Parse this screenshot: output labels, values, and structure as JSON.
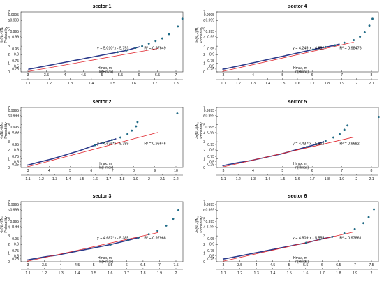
{
  "chart_data": [
    {
      "type": "scatter",
      "title": "sector 1",
      "xlabel": "Hmax, m",
      "xlabel2": "ln(Hmax)",
      "ylabel_left": "-ln(N₀-i)/N₀",
      "ylabel_right": "Probability",
      "x_ticks": [
        "3",
        "3.5",
        "4",
        "4.5",
        "5",
        "5.5",
        "6",
        "6.5",
        "7"
      ],
      "x2_ticks": [
        "1.1",
        "1.2",
        "1.3",
        "1.4",
        "1.5",
        "1.6",
        "1.7",
        "1.8"
      ],
      "y_ticks": [
        "0",
        "1",
        "2",
        "3",
        "4",
        "5",
        "6",
        "7"
      ],
      "prob_ticks": [
        "0.25",
        "0.5",
        "0.75",
        "0.9",
        "0.95",
        "0.99",
        "0.995",
        "0.999",
        "0.9995"
      ],
      "equation": "y = 5.010*x - 5.793",
      "r2": "R² = 0.97649",
      "fit": {
        "slope": 5.01,
        "intercept": -5.793
      },
      "ln_range": [
        1.1,
        1.8
      ],
      "points": [
        [
          1.12,
          0.3
        ],
        [
          1.16,
          0.5
        ],
        [
          1.22,
          0.8
        ],
        [
          1.28,
          1.1
        ],
        [
          1.34,
          1.4
        ],
        [
          1.4,
          1.7
        ],
        [
          1.46,
          2.0
        ],
        [
          1.52,
          2.3
        ],
        [
          1.56,
          2.5
        ],
        [
          1.6,
          2.8
        ],
        [
          1.63,
          3.0
        ],
        [
          1.66,
          3.3
        ],
        [
          1.69,
          3.6
        ],
        [
          1.72,
          3.9
        ],
        [
          1.75,
          4.4
        ],
        [
          1.79,
          5.3
        ],
        [
          1.81,
          6.2
        ]
      ]
    },
    {
      "type": "scatter",
      "title": "sector 4",
      "xlabel": "Hmax, m",
      "xlabel2": "ln(Hmax)",
      "ylabel_left": "-ln(N₀-i)/N₀",
      "ylabel_right": "Probability",
      "x_ticks": [
        "3",
        "4",
        "5",
        "6",
        "7",
        "8"
      ],
      "x2_ticks": [
        "1.1",
        "1.2",
        "1.3",
        "1.4",
        "1.5",
        "1.6",
        "1.7",
        "1.8",
        "1.9",
        "2",
        "2.1"
      ],
      "y_ticks": [
        "0",
        "1",
        "2",
        "3",
        "4",
        "5",
        "6",
        "7"
      ],
      "prob_ticks": [
        "0.25",
        "0.5",
        "0.75",
        "0.9",
        "0.95",
        "0.99",
        "0.995",
        "0.999",
        "0.9995"
      ],
      "equation": "y = 4.245*x - 4.852",
      "r2": "R² = 0.98476",
      "fit": {
        "slope": 4.245,
        "intercept": -4.852
      },
      "ln_range": [
        1.1,
        2.1
      ],
      "points": [
        [
          1.12,
          0.3
        ],
        [
          1.2,
          0.6
        ],
        [
          1.3,
          1.0
        ],
        [
          1.4,
          1.4
        ],
        [
          1.5,
          1.8
        ],
        [
          1.6,
          2.2
        ],
        [
          1.7,
          2.6
        ],
        [
          1.78,
          2.9
        ],
        [
          1.84,
          3.1
        ],
        [
          1.9,
          3.4
        ],
        [
          1.96,
          3.7
        ],
        [
          2.0,
          4.1
        ],
        [
          2.03,
          4.6
        ],
        [
          2.06,
          5.4
        ],
        [
          2.08,
          6.2
        ]
      ]
    },
    {
      "type": "scatter",
      "title": "sector 2",
      "xlabel": "Hmax, m",
      "xlabel2": "ln(Hmax)",
      "ylabel_left": "-ln(N₀-i)/N₀",
      "ylabel_right": "Probability",
      "x_ticks": [
        "3",
        "4",
        "5",
        "6",
        "7",
        "8",
        "9",
        "10"
      ],
      "x2_ticks": [
        "1.1",
        "1.2",
        "1.3",
        "1.4",
        "1.5",
        "1.6",
        "1.7",
        "1.8",
        "1.9",
        "2",
        "2.1",
        "2.2"
      ],
      "y_ticks": [
        "0",
        "1",
        "2",
        "3",
        "4",
        "5",
        "6",
        "7"
      ],
      "prob_ticks": [
        "0.25",
        "0.5",
        "0.75",
        "0.9",
        "0.95",
        "0.99",
        "0.995",
        "0.999",
        "0.9995"
      ],
      "equation": "y = 4.636*x - 5.389",
      "r2": "R² = 0.96646",
      "fit": {
        "slope": 4.636,
        "intercept": -5.389
      },
      "ln_range": [
        1.1,
        2.2
      ],
      "points": [
        [
          1.12,
          0.25
        ],
        [
          1.2,
          0.6
        ],
        [
          1.3,
          1.0
        ],
        [
          1.4,
          1.5
        ],
        [
          1.5,
          2.0
        ],
        [
          1.55,
          2.3
        ],
        [
          1.6,
          2.6
        ],
        [
          1.66,
          2.9
        ],
        [
          1.72,
          3.2
        ],
        [
          1.78,
          3.5
        ],
        [
          1.83,
          3.9
        ],
        [
          1.86,
          4.3
        ],
        [
          1.89,
          4.8
        ],
        [
          1.9,
          5.3
        ],
        [
          2.18,
          6.3
        ]
      ]
    },
    {
      "type": "scatter",
      "title": "sector 5",
      "xlabel": "Hmax, m",
      "xlabel2": "ln(Hmax)",
      "ylabel_left": "-ln(N₀-i)/N₀",
      "ylabel_right": "Probability",
      "x_ticks": [
        "3",
        "4",
        "5",
        "6",
        "7",
        "8"
      ],
      "x2_ticks": [
        "1.1",
        "1.2",
        "1.3",
        "1.4",
        "1.5",
        "1.6",
        "1.7",
        "1.8",
        "1.9",
        "2",
        "2.1"
      ],
      "y_ticks": [
        "0",
        "1",
        "2",
        "3",
        "4",
        "5",
        "6",
        "7"
      ],
      "prob_ticks": [
        "0.25",
        "0.5",
        "0.75",
        "0.9",
        "0.95",
        "0.99",
        "0.995",
        "0.999",
        "0.9995"
      ],
      "equation": "y = 4.437*x - 5.162",
      "r2": "R² = 0.9682",
      "fit": {
        "slope": 4.437,
        "intercept": -5.162
      },
      "ln_range": [
        1.1,
        2.1
      ],
      "points": [
        [
          1.12,
          0.2
        ],
        [
          1.2,
          0.5
        ],
        [
          1.3,
          0.8
        ],
        [
          1.4,
          1.2
        ],
        [
          1.5,
          1.6
        ],
        [
          1.58,
          2.0
        ],
        [
          1.66,
          2.4
        ],
        [
          1.72,
          2.7
        ],
        [
          1.78,
          3.1
        ],
        [
          1.83,
          3.5
        ],
        [
          1.87,
          3.9
        ],
        [
          1.9,
          4.4
        ],
        [
          1.92,
          4.9
        ],
        [
          2.12,
          5.9
        ]
      ]
    },
    {
      "type": "scatter",
      "title": "sector 3",
      "xlabel": "Hmax, m",
      "xlabel2": "ln(Hmax)",
      "ylabel_left": "-ln(N₀-i)/N₀",
      "ylabel_right": "Probability",
      "x_ticks": [
        "3",
        "3.5",
        "4",
        "4.5",
        "5",
        "5.5",
        "6",
        "6.5",
        "7",
        "7.5"
      ],
      "x2_ticks": [
        "1.1",
        "1.2",
        "1.3",
        "1.4",
        "1.5",
        "1.6",
        "1.7",
        "1.8",
        "1.9",
        "2"
      ],
      "y_ticks": [
        "0",
        "1",
        "2",
        "3",
        "4",
        "5",
        "6",
        "7"
      ],
      "prob_ticks": [
        "0.25",
        "0.5",
        "0.75",
        "0.9",
        "0.95",
        "0.99",
        "0.995",
        "0.999",
        "0.9995"
      ],
      "equation": "y = 4.687*x - 5.385",
      "r2": "R² = 0.97968",
      "fit": {
        "slope": 4.687,
        "intercept": -5.385
      },
      "ln_range": [
        1.1,
        2.0
      ],
      "points": [
        [
          1.12,
          0.2
        ],
        [
          1.2,
          0.5
        ],
        [
          1.3,
          0.8
        ],
        [
          1.4,
          1.2
        ],
        [
          1.5,
          1.6
        ],
        [
          1.6,
          2.0
        ],
        [
          1.7,
          2.5
        ],
        [
          1.76,
          2.8
        ],
        [
          1.82,
          3.2
        ],
        [
          1.87,
          3.6
        ],
        [
          1.92,
          4.2
        ],
        [
          1.96,
          5.0
        ],
        [
          1.99,
          6.0
        ]
      ]
    },
    {
      "type": "scatter",
      "title": "sector 6",
      "xlabel": "Hmax, m",
      "xlabel2": "ln(Hmax)",
      "ylabel_left": "-ln(N₀-i)/N₀",
      "ylabel_right": "Probability",
      "x_ticks": [
        "3",
        "3.5",
        "4",
        "4.5",
        "5",
        "5.5",
        "6",
        "6.5",
        "7",
        "7.5"
      ],
      "x2_ticks": [
        "1.1",
        "1.2",
        "1.3",
        "1.4",
        "1.5",
        "1.6",
        "1.7",
        "1.8",
        "1.9",
        "2"
      ],
      "y_ticks": [
        "0",
        "1",
        "2",
        "3",
        "4",
        "5",
        "6",
        "7"
      ],
      "prob_ticks": [
        "0.25",
        "0.5",
        "0.75",
        "0.9",
        "0.95",
        "0.99",
        "0.995",
        "0.999",
        "0.9995"
      ],
      "equation": "y = 4.809*x - 5.555",
      "r2": "R² = 0.97861",
      "fit": {
        "slope": 4.809,
        "intercept": -5.555
      },
      "ln_range": [
        1.1,
        2.0
      ],
      "points": [
        [
          1.12,
          0.3
        ],
        [
          1.2,
          0.6
        ],
        [
          1.3,
          1.0
        ],
        [
          1.4,
          1.4
        ],
        [
          1.5,
          1.8
        ],
        [
          1.6,
          2.2
        ],
        [
          1.68,
          2.6
        ],
        [
          1.75,
          2.9
        ],
        [
          1.82,
          3.3
        ],
        [
          1.88,
          3.8
        ],
        [
          1.93,
          4.5
        ],
        [
          1.96,
          5.2
        ],
        [
          1.99,
          6.1
        ]
      ]
    }
  ],
  "colors": {
    "points": "#1f6f8b",
    "points_edge": "#0d4f6a",
    "dense_line": "#2b3a8a",
    "fit_line": "#e0262e",
    "axis": "#333333",
    "grid": "#e6e6e6"
  }
}
